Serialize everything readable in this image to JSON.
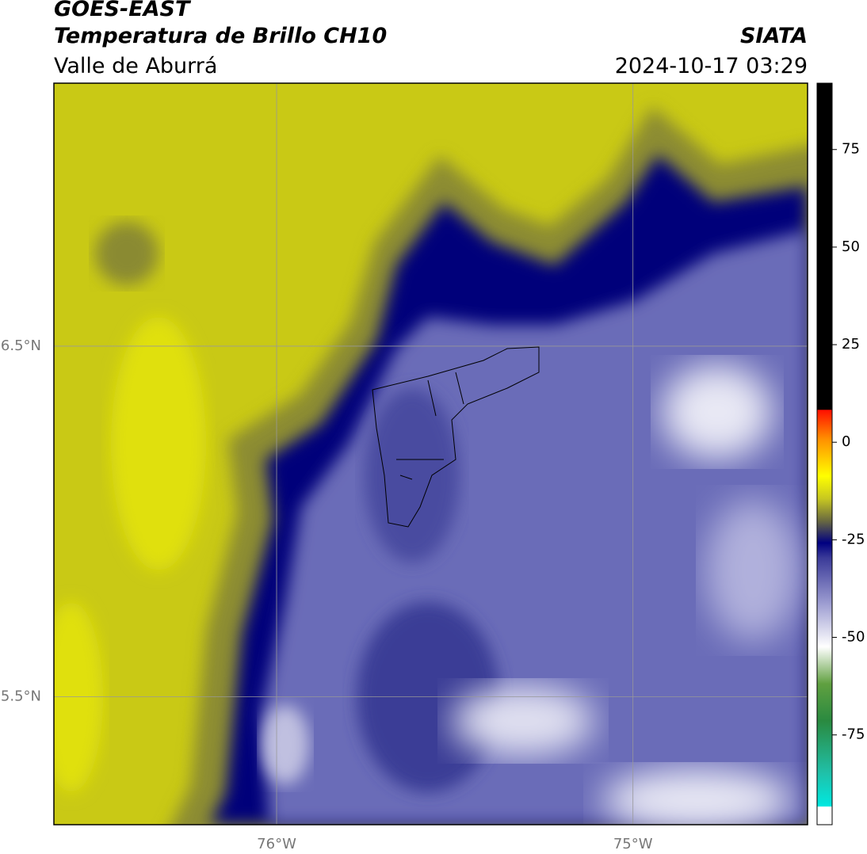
{
  "header": {
    "satellite": "GOES-EAST",
    "product": "Temperatura de Brillo CH10",
    "region": "Valle de Aburrá",
    "agency": "SIATA",
    "timestamp": "2024-10-17 03:29"
  },
  "map": {
    "lonlim": [
      -76.625,
      -74.51
    ],
    "latlim": [
      5.135,
      7.25
    ],
    "lonticks": [
      {
        "value": -76,
        "label": "76°W"
      },
      {
        "value": -75,
        "label": "75°W"
      }
    ],
    "latticks": [
      {
        "value": 6.5,
        "label": "6.5°N"
      },
      {
        "value": 5.5,
        "label": "5.5°N"
      }
    ]
  },
  "colorbar": {
    "lim": [
      -98,
      92
    ],
    "ticks": [
      75,
      50,
      25,
      0,
      -25,
      -50,
      -75
    ]
  }
}
